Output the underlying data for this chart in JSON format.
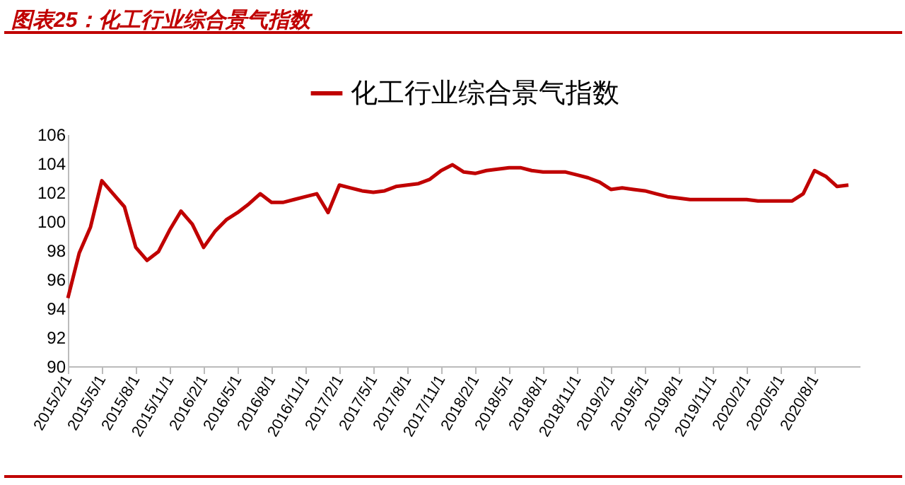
{
  "chart_data": {
    "type": "line",
    "title": "图表25：化工行业综合景气指数",
    "categories": [
      "2015/2/1",
      null,
      null,
      "2015/5/1",
      null,
      null,
      "2015/8/1",
      null,
      null,
      "2015/11/1",
      null,
      null,
      "2016/2/1",
      null,
      null,
      "2016/5/1",
      null,
      null,
      "2016/8/1",
      null,
      null,
      "2016/11/1",
      null,
      null,
      "2017/2/1",
      null,
      null,
      "2017/5/1",
      null,
      null,
      "2017/8/1",
      null,
      null,
      "2017/11/1",
      null,
      null,
      "2018/2/1",
      null,
      null,
      "2018/5/1",
      null,
      null,
      "2018/8/1",
      null,
      null,
      "2018/11/1",
      null,
      null,
      "2019/2/1",
      null,
      null,
      "2019/5/1",
      null,
      null,
      "2019/8/1",
      null,
      null,
      "2019/11/1",
      null,
      null,
      "2020/2/1",
      null,
      null,
      "2020/5/1",
      null,
      null,
      "2020/8/1",
      null,
      null,
      null
    ],
    "series": [
      {
        "name": "化工行业综合景气指数",
        "color": "#c00000",
        "values": [
          94.7,
          97.8,
          99.6,
          102.8,
          101.9,
          101.0,
          98.2,
          97.3,
          97.9,
          99.4,
          100.7,
          99.8,
          98.2,
          99.3,
          100.1,
          100.6,
          101.2,
          101.9,
          101.3,
          101.3,
          101.5,
          101.7,
          101.9,
          100.6,
          102.5,
          102.3,
          102.1,
          102.0,
          102.1,
          102.4,
          102.5,
          102.6,
          102.9,
          103.5,
          103.9,
          103.4,
          103.3,
          103.5,
          103.6,
          103.7,
          103.7,
          103.5,
          103.4,
          103.4,
          103.4,
          103.2,
          103.0,
          102.7,
          102.2,
          102.3,
          102.2,
          102.1,
          101.9,
          101.7,
          101.6,
          101.5,
          101.5,
          101.5,
          101.5,
          101.5,
          101.5,
          101.4,
          101.4,
          101.4,
          101.4,
          101.9,
          103.5,
          103.1,
          102.4,
          102.5
        ]
      }
    ],
    "ylim": [
      90,
      106
    ],
    "yticks": [
      90,
      92,
      94,
      96,
      98,
      100,
      102,
      104,
      106
    ],
    "legend": "top",
    "line_style": "solid",
    "marker": "none",
    "grid": false
  }
}
